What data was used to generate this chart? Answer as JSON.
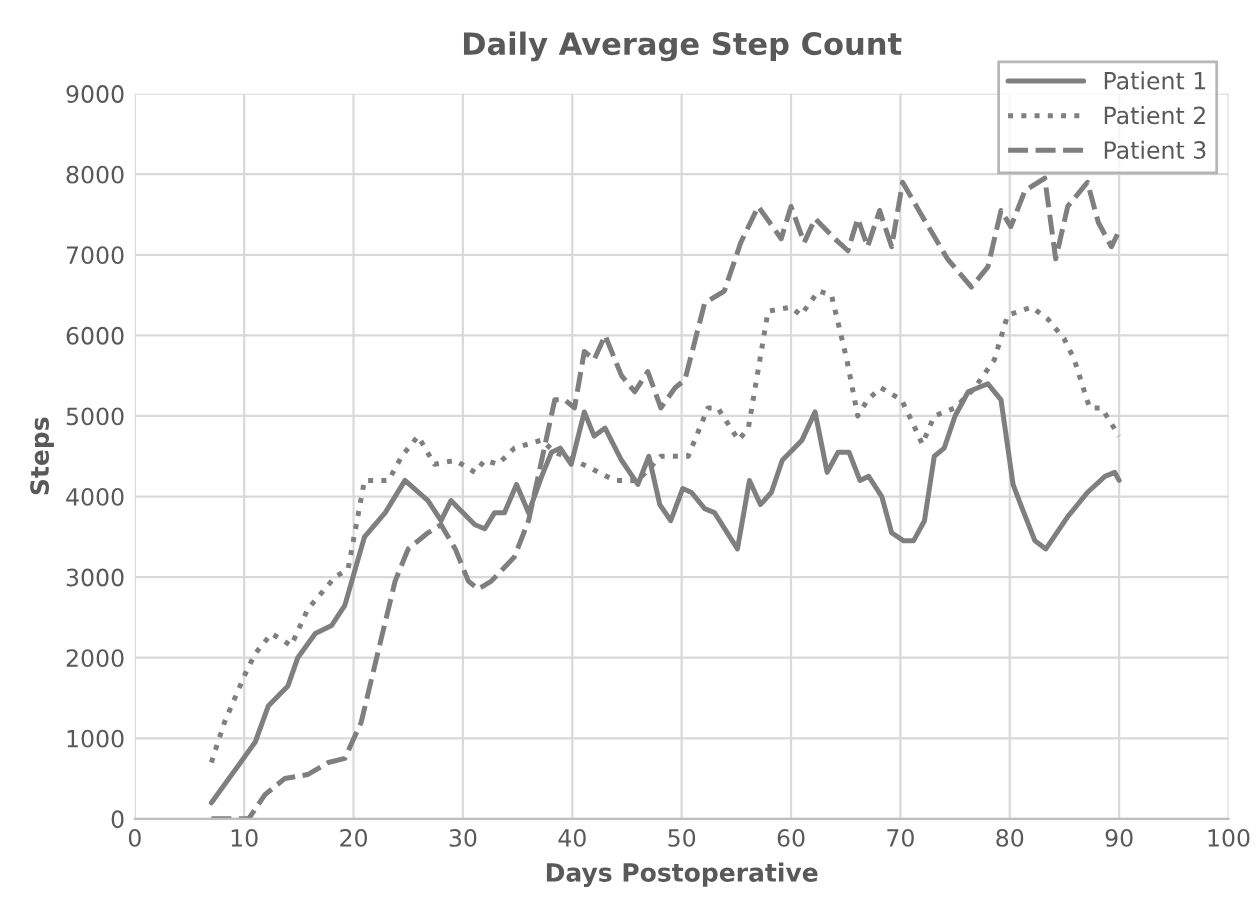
{
  "chart_data": {
    "type": "line",
    "title": "Daily Average Step Count",
    "xlabel": "Days Postoperative",
    "ylabel": "Steps",
    "xlim": [
      0,
      100
    ],
    "xticks": [
      0,
      10,
      20,
      30,
      40,
      50,
      60,
      70,
      80,
      90,
      100
    ],
    "ylim": [
      0,
      9000
    ],
    "yticks": [
      0,
      1000,
      2000,
      3000,
      4000,
      5000,
      6000,
      7000,
      8000,
      9000
    ],
    "grid": true,
    "legend": "top right",
    "marker": "none",
    "series": [
      {
        "name": "Patient 1",
        "color": "#7f7f7f",
        "line_style": "solid",
        "x": [
          7,
          11,
          12.2,
          14,
          14.9,
          16.5,
          18,
          19.2,
          21,
          22.9,
          24.7,
          26.8,
          28,
          28.9,
          31.1,
          32,
          32.9,
          33.8,
          34.9,
          36,
          37.2,
          38.1,
          38.9,
          39.9,
          41.1,
          42,
          43,
          44.5,
          46,
          47,
          48,
          49,
          50.1,
          50.9,
          52.1,
          53,
          55.1,
          56.2,
          57.2,
          58.2,
          59.2,
          61,
          62.2,
          63.3,
          64.3,
          65.3,
          66.3,
          67.1,
          68.3,
          69.2,
          70.3,
          71.2,
          72.2,
          73.1,
          74,
          75,
          76.2,
          78,
          79.2,
          80.3,
          81,
          82.3,
          83.3,
          85.3,
          87.1,
          88.7,
          89.6,
          90
        ],
        "values": [
          200,
          950,
          1400,
          1650,
          2000,
          2300,
          2400,
          2650,
          3500,
          3800,
          4200,
          3950,
          3700,
          3950,
          3650,
          3600,
          3800,
          3800,
          4150,
          3800,
          4250,
          4550,
          4600,
          4400,
          5050,
          4750,
          4850,
          4450,
          4150,
          4500,
          3900,
          3700,
          4100,
          4050,
          3850,
          3800,
          3350,
          4200,
          3900,
          4050,
          4450,
          4700,
          5050,
          4300,
          4550,
          4550,
          4200,
          4250,
          4000,
          3550,
          3450,
          3450,
          3700,
          4500,
          4600,
          5000,
          5300,
          5400,
          5200,
          4150,
          3900,
          3450,
          3350,
          3750,
          4050,
          4250,
          4300,
          4200
        ]
      },
      {
        "name": "Patient 2",
        "color": "#7f7f7f",
        "line_style": "dotted",
        "x": [
          7,
          8.2,
          10.1,
          11,
          12.5,
          14.3,
          15.8,
          18.3,
          19.5,
          21,
          23.2,
          24.4,
          25.9,
          27.4,
          29.3,
          31.1,
          32,
          33.2,
          34.7,
          37.2,
          38.4,
          40.2,
          43.9,
          46,
          48.1,
          50.6,
          52.4,
          53.3,
          55.2,
          56.1,
          57.9,
          60,
          60.9,
          62.5,
          63.7,
          65.1,
          66.1,
          67,
          68.2,
          70.1,
          71,
          72,
          73.1,
          75,
          76.8,
          78.6,
          79.8,
          82,
          83.5,
          85,
          85.9,
          87.3,
          88.4,
          90
        ],
        "values": [
          700,
          1200,
          1800,
          2050,
          2300,
          2150,
          2600,
          3000,
          3100,
          4200,
          4200,
          4500,
          4750,
          4400,
          4450,
          4300,
          4450,
          4400,
          4600,
          4700,
          4550,
          4450,
          4200,
          4200,
          4500,
          4500,
          5100,
          5100,
          4700,
          4850,
          6300,
          6350,
          6250,
          6550,
          6500,
          5700,
          5000,
          5200,
          5350,
          5200,
          4950,
          4650,
          5000,
          5100,
          5350,
          5700,
          6250,
          6350,
          6200,
          5950,
          5700,
          5100,
          5100,
          4750
        ]
      },
      {
        "name": "Patient 3",
        "color": "#7f7f7f",
        "line_style": "dashed",
        "x": [
          7,
          10.4,
          11.9,
          13.7,
          15.8,
          17.7,
          19.2,
          20.7,
          22.2,
          23.8,
          25,
          26.8,
          28,
          29.3,
          30.5,
          31.4,
          32.6,
          34.7,
          36,
          37.2,
          38.4,
          39.3,
          40.2,
          41.1,
          42,
          43,
          44.5,
          45.7,
          46.9,
          48.1,
          49.4,
          50.3,
          52.1,
          53.9,
          55.4,
          57,
          59.1,
          60,
          61.2,
          62.2,
          64,
          65.2,
          66.1,
          67,
          68.1,
          69.2,
          70.2,
          71.9,
          74.3,
          76.5,
          78,
          79.2,
          80.1,
          81.4,
          83.2,
          84.2,
          85.3,
          87.1,
          88.1,
          89.3,
          90
        ],
        "values": [
          0,
          0,
          300,
          500,
          550,
          700,
          750,
          1200,
          2050,
          2950,
          3350,
          3550,
          3650,
          3350,
          2950,
          2850,
          2950,
          3250,
          3700,
          4450,
          5200,
          5200,
          5100,
          5800,
          5700,
          6000,
          5500,
          5300,
          5550,
          5100,
          5350,
          5450,
          6400,
          6550,
          7150,
          7600,
          7200,
          7600,
          7150,
          7450,
          7200,
          7050,
          7450,
          7100,
          7550,
          7100,
          7900,
          7500,
          6950,
          6600,
          6850,
          7550,
          7350,
          7800,
          7950,
          6950,
          7600,
          7900,
          7400,
          7100,
          7300
        ]
      }
    ]
  }
}
